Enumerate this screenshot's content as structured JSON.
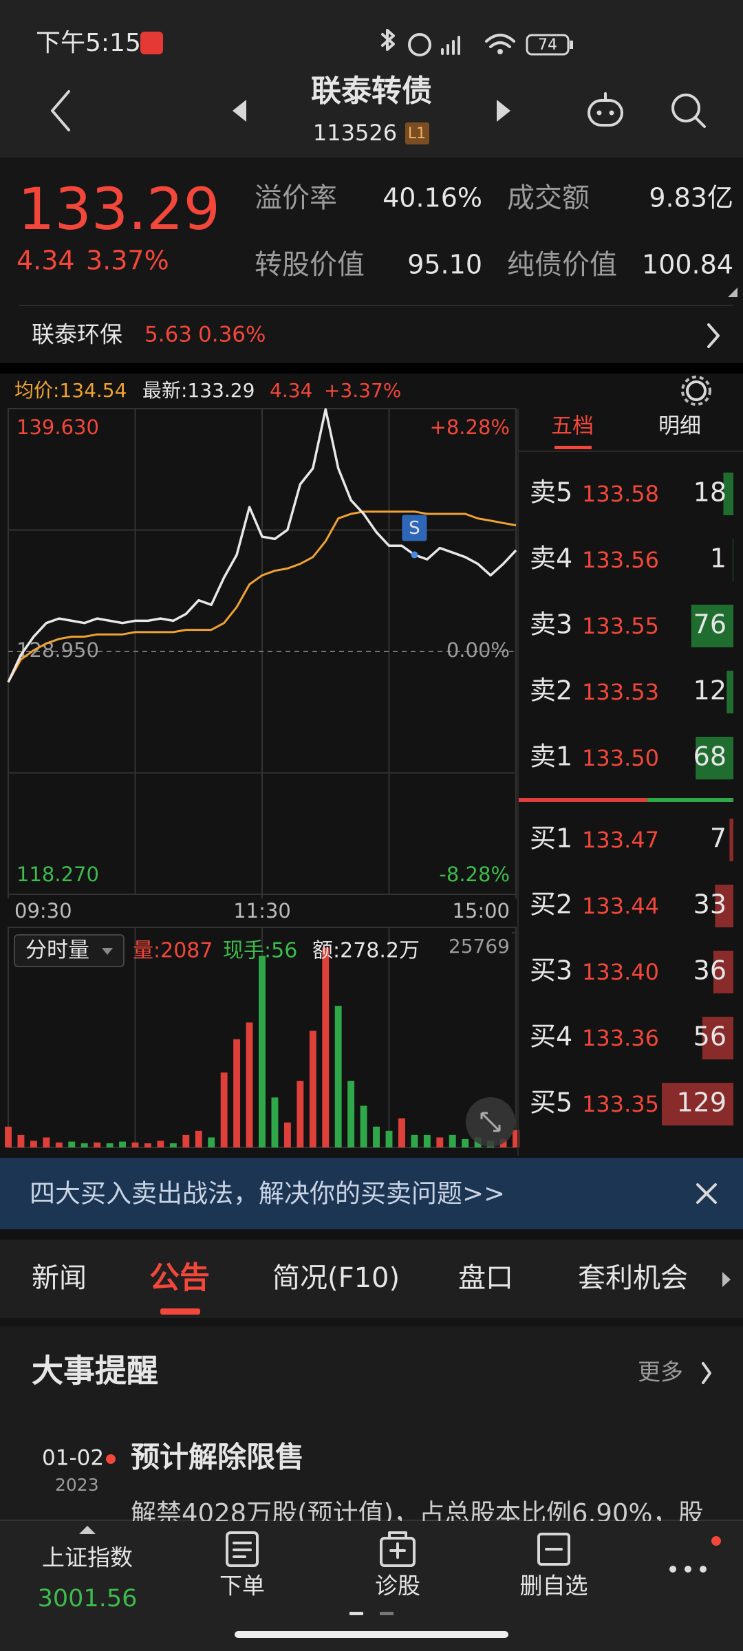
{
  "status_bar": {
    "time": "下午5:15",
    "battery": "74"
  },
  "header": {
    "title": "联泰转债",
    "code": "113526",
    "level": "L1"
  },
  "quote": {
    "price": "133.29",
    "change": "4.34",
    "change_pct": "3.37%",
    "stats": [
      {
        "label": "溢价率",
        "value": "40.16%"
      },
      {
        "label": "成交额",
        "value": "9.83亿"
      },
      {
        "label": "转股价值",
        "value": "95.10"
      },
      {
        "label": "纯债价值",
        "value": "100.84"
      }
    ]
  },
  "underlying": {
    "name": "联泰环保",
    "price": "5.63",
    "change_pct": "0.36%"
  },
  "chart_data": [
    {
      "type": "line",
      "header_labels": [
        "均价:134.54",
        "最新:133.29",
        "4.34",
        "+3.37%"
      ],
      "x": [
        0,
        6,
        12,
        18,
        24,
        30,
        36,
        42,
        48,
        54,
        60,
        66,
        72,
        78,
        84,
        90,
        96,
        102,
        108,
        114,
        120,
        126,
        132,
        138,
        144,
        150,
        156,
        162,
        168,
        174,
        180,
        186,
        192,
        198,
        204,
        210,
        216,
        222,
        228,
        234,
        240
      ],
      "series": [
        {
          "color": "#e8e8e8",
          "values": [
            127.6,
            128.8,
            129.6,
            130.2,
            130.4,
            130.3,
            130.2,
            130.4,
            130.3,
            130.2,
            130.3,
            130.3,
            130.4,
            130.3,
            130.6,
            131.2,
            131.0,
            132.2,
            133.2,
            135.3,
            134.0,
            133.9,
            134.3,
            136.3,
            137.0,
            139.6,
            137.0,
            135.6,
            135.0,
            134.2,
            133.6,
            133.6,
            133.2,
            133.0,
            133.5,
            133.3,
            133.1,
            132.8,
            132.3,
            132.8,
            133.4
          ]
        },
        {
          "color": "#f0a233",
          "values": [
            127.6,
            128.6,
            129.0,
            129.3,
            129.5,
            129.6,
            129.6,
            129.7,
            129.7,
            129.7,
            129.8,
            129.8,
            129.8,
            129.8,
            129.9,
            129.9,
            129.9,
            130.2,
            130.9,
            131.9,
            132.3,
            132.5,
            132.6,
            132.8,
            133.1,
            133.8,
            134.8,
            135.0,
            135.1,
            135.1,
            135.1,
            135.1,
            135.1,
            135.0,
            135.0,
            135.0,
            135.0,
            134.8,
            134.7,
            134.6,
            134.5
          ]
        }
      ],
      "xlim": [
        0,
        240
      ],
      "xticks": [
        {
          "value": 0,
          "label": "09:30"
        },
        {
          "value": 120,
          "label": "11:30"
        },
        {
          "value": 240,
          "label": "15:00"
        }
      ],
      "ylim": [
        118.27,
        139.63
      ],
      "yticks": [
        {
          "value": 139.63,
          "label": "139.630"
        },
        {
          "value": 128.95,
          "label": "128.950"
        },
        {
          "value": 118.27,
          "label": "118.270"
        }
      ],
      "y2lim": [
        -8.28,
        8.28
      ],
      "y2ticks": [
        {
          "value": 8.28,
          "label": "+8.28%"
        },
        {
          "value": 0,
          "label": "0.00%"
        },
        {
          "value": -8.28,
          "label": "-8.28%"
        }
      ],
      "annotations": [
        {
          "text": "S",
          "x": 192
        }
      ],
      "grid": true
    },
    {
      "type": "bar",
      "selector": "分时量",
      "header_labels": [
        "量:2087",
        "现手:56",
        "额:278.2万"
      ],
      "x": [
        0,
        6,
        12,
        18,
        24,
        30,
        36,
        42,
        48,
        54,
        60,
        66,
        72,
        78,
        84,
        90,
        96,
        102,
        108,
        114,
        120,
        126,
        132,
        138,
        144,
        150,
        156,
        162,
        168,
        174,
        180,
        186,
        192,
        198,
        204,
        210,
        216,
        222,
        228,
        234,
        240
      ],
      "values": [
        2500,
        1500,
        800,
        1200,
        600,
        700,
        500,
        600,
        500,
        700,
        600,
        500,
        800,
        500,
        1500,
        2000,
        1200,
        9000,
        13000,
        15000,
        23000,
        6000,
        3000,
        8000,
        14000,
        24000,
        17000,
        8000,
        5000,
        2500,
        2000,
        3500,
        1500,
        1500,
        1200,
        1500,
        1000,
        1200,
        800,
        1000,
        2087
      ],
      "up_color": "#e0403a",
      "down_color": "#2fa84a",
      "xlim": [
        0,
        240
      ],
      "ylim": [
        0,
        25769
      ],
      "yticks": [
        25769
      ]
    }
  ],
  "order_book": {
    "tabs": [
      "五档",
      "明细"
    ],
    "asks": [
      {
        "label": "卖5",
        "price": "133.58",
        "volume": 18
      },
      {
        "label": "卖4",
        "price": "133.56",
        "volume": 1
      },
      {
        "label": "卖3",
        "price": "133.55",
        "volume": 76
      },
      {
        "label": "卖2",
        "price": "133.53",
        "volume": 12
      },
      {
        "label": "卖1",
        "price": "133.50",
        "volume": 68
      }
    ],
    "bids": [
      {
        "label": "买1",
        "price": "133.47",
        "volume": 7
      },
      {
        "label": "买2",
        "price": "133.44",
        "volume": 33
      },
      {
        "label": "买3",
        "price": "133.40",
        "volume": 36
      },
      {
        "label": "买4",
        "price": "133.36",
        "volume": 56
      },
      {
        "label": "买5",
        "price": "133.35",
        "volume": 129
      }
    ]
  },
  "banner": {
    "text": "四大买入卖出战法，解决你的买卖问题>>"
  },
  "tabs": [
    "新闻",
    "公告",
    "简况(F10)",
    "盘口",
    "套利机会"
  ],
  "events": {
    "title": "大事提醒",
    "more": "更多",
    "items": [
      {
        "date": "01-02",
        "year": "2023",
        "title": "预计解除限售",
        "desc": "解禁4028万股(预计值)，占总股本比例6.90%，股"
      }
    ]
  },
  "bottom_nav": {
    "index_name": "上证指数",
    "index_value": "3001.56",
    "items": [
      "下单",
      "诊股",
      "删自选"
    ]
  }
}
